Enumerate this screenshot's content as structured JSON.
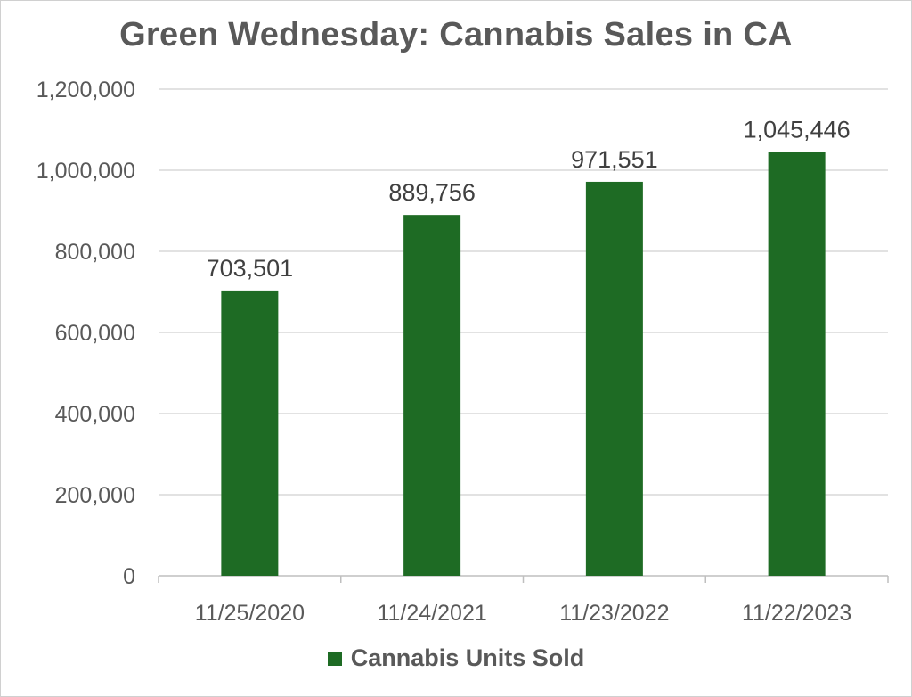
{
  "colors": {
    "bar": "#1e6b24",
    "grid": "#d9d9d9",
    "axis": "#bfbfbf"
  },
  "chart_data": {
    "type": "bar",
    "title": "Green Wednesday: Cannabis Sales in CA",
    "categories": [
      "11/25/2020",
      "11/24/2021",
      "11/23/2022",
      "11/22/2023"
    ],
    "series": [
      {
        "name": "Cannabis Units Sold",
        "values": [
          703501,
          889756,
          971551,
          1045446
        ],
        "data_labels": [
          "703,501",
          "889,756",
          "971,551",
          "1,045,446"
        ]
      }
    ],
    "yticks": [
      0,
      200000,
      400000,
      600000,
      800000,
      1000000,
      1200000
    ],
    "ytick_labels": [
      "0",
      "200,000",
      "400,000",
      "600,000",
      "800,000",
      "1,000,000",
      "1,200,000"
    ],
    "ylim": [
      0,
      1200000
    ],
    "xlabel": "",
    "ylabel": "",
    "grid": true,
    "legend": "bottom"
  }
}
